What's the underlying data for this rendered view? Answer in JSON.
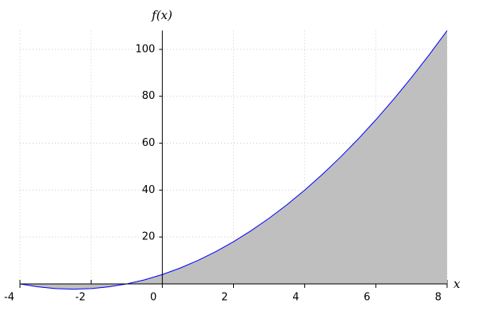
{
  "chart_data": {
    "type": "area",
    "xlabel": "x",
    "ylabel": "f(x)",
    "x": [
      -4,
      -3.5,
      -3,
      -2.5,
      -2,
      -1.5,
      -1,
      -0.5,
      0,
      0.5,
      1,
      1.5,
      2,
      2.5,
      3,
      3.5,
      4,
      4.5,
      5,
      5.5,
      6,
      6.5,
      7,
      7.5,
      8
    ],
    "values": [
      0,
      -1.25,
      -2,
      -2.25,
      -2,
      -1.25,
      0,
      1.75,
      4,
      6.75,
      10,
      13.75,
      18,
      22.75,
      28,
      33.75,
      40,
      46.75,
      54,
      61.75,
      70,
      78.75,
      88,
      97.75,
      108
    ],
    "color": "#0000ff",
    "fill_color": "#bfbfbf",
    "xlim": [
      -4,
      8
    ],
    "ylim": [
      -2.25,
      108
    ],
    "xticks": [
      -4,
      -2,
      0,
      2,
      4,
      6,
      8
    ],
    "yticks": [
      20,
      40,
      60,
      80,
      100
    ],
    "grid": true
  }
}
